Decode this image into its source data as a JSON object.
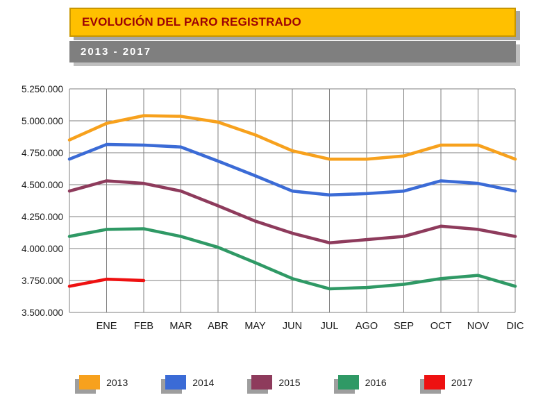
{
  "header": {
    "title": "EVOLUCIÓN DEL PARO REGISTRADO",
    "subtitle": "2013 - 2017"
  },
  "colors": {
    "title_bar_bg": "#FFC000",
    "title_text": "#9C0006",
    "subtitle_bar_bg": "#7F7F7F",
    "subtitle_text": "#FFFFFF",
    "grid_line": "#7F7F7F",
    "axis_text": "#1A1A1A",
    "shadow": "#A6A6A6"
  },
  "chart_data": {
    "type": "line",
    "title": "EVOLUCIÓN DEL PARO REGISTRADO",
    "subtitle": "2013 - 2017",
    "categories": [
      "ENE",
      "FEB",
      "MAR",
      "ABR",
      "MAY",
      "JUN",
      "JUL",
      "AGO",
      "SEP",
      "OCT",
      "NOV",
      "DIC"
    ],
    "note": "Each series begins with a starting point on the left axis (value before ENE); values estimated from gridlines",
    "y_ticks": [
      "3.500.000",
      "3.750.000",
      "4.000.000",
      "4.250.000",
      "4.500.000",
      "4.750.000",
      "5.000.000",
      "5.250.000"
    ],
    "y_tick_values": [
      3500000,
      3750000,
      4000000,
      4250000,
      4500000,
      4750000,
      5000000,
      5250000
    ],
    "ylim": [
      3500000,
      5250000
    ],
    "grid": true,
    "legend_position": "bottom",
    "series": [
      {
        "name": "2013",
        "color": "#F7A11D",
        "values": [
          4850000,
          4980000,
          5040000,
          5035000,
          4990000,
          4890000,
          4765000,
          4700000,
          4700000,
          4725000,
          4810000,
          4810000,
          4700000
        ]
      },
      {
        "name": "2014",
        "color": "#3B6BD6",
        "values": [
          4700000,
          4815000,
          4810000,
          4795000,
          4685000,
          4570000,
          4450000,
          4420000,
          4430000,
          4450000,
          4530000,
          4510000,
          4450000
        ]
      },
      {
        "name": "2015",
        "color": "#8E3B5C",
        "values": [
          4450000,
          4530000,
          4510000,
          4450000,
          4335000,
          4215000,
          4120000,
          4045000,
          4070000,
          4095000,
          4175000,
          4150000,
          4095000
        ]
      },
      {
        "name": "2016",
        "color": "#2F9965",
        "values": [
          4095000,
          4150000,
          4155000,
          4095000,
          4010000,
          3890000,
          3765000,
          3685000,
          3695000,
          3720000,
          3765000,
          3790000,
          3705000
        ]
      },
      {
        "name": "2017",
        "color": "#EE1111",
        "values": [
          3705000,
          3760000,
          3750000
        ]
      }
    ]
  }
}
